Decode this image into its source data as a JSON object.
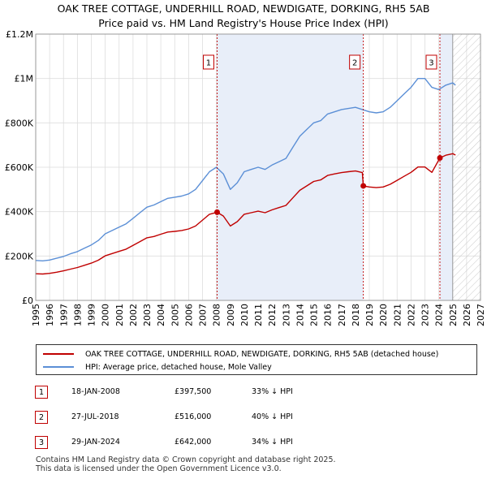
{
  "header": {
    "title_line1": "OAK TREE COTTAGE, UNDERHILL ROAD, NEWDIGATE, DORKING, RH5 5AB",
    "title_line2": "Price paid vs. HM Land Registry's House Price Index (HPI)"
  },
  "legend": {
    "property_label": "OAK TREE COTTAGE, UNDERHILL ROAD, NEWDIGATE, DORKING, RH5 5AB (detached house)",
    "hpi_label": "HPI: Average price, detached house, Mole Valley"
  },
  "transactions": [
    {
      "num": "1",
      "date": "18-JAN-2008",
      "price": "£397,500",
      "hpi": "33% ↓ HPI"
    },
    {
      "num": "2",
      "date": "27-JUL-2018",
      "price": "£516,000",
      "hpi": "40% ↓ HPI"
    },
    {
      "num": "3",
      "date": "29-JAN-2024",
      "price": "£642,000",
      "hpi": "34% ↓ HPI"
    }
  ],
  "footer": {
    "line1": "Contains HM Land Registry data © Crown copyright and database right 2025.",
    "line2": "This data is licensed under the Open Government Licence v3.0."
  },
  "colors": {
    "property": "#c00000",
    "hpi": "#5b8fd6",
    "shade": "#e8eef9",
    "grid": "#dddddd"
  },
  "chart_data": {
    "type": "line",
    "title": "OAK TREE COTTAGE, UNDERHILL ROAD, NEWDIGATE, DORKING, RH5 5AB",
    "subtitle": "Price paid vs. HM Land Registry's House Price Index (HPI)",
    "xlim": [
      1995,
      2027
    ],
    "ylim": [
      0,
      1200000
    ],
    "x_ticks": [
      "1995",
      "1996",
      "1997",
      "1998",
      "1999",
      "2000",
      "2001",
      "2002",
      "2003",
      "2004",
      "2005",
      "2006",
      "2007",
      "2008",
      "2009",
      "2010",
      "2011",
      "2012",
      "2013",
      "2014",
      "2015",
      "2016",
      "2017",
      "2018",
      "2019",
      "2020",
      "2021",
      "2022",
      "2023",
      "2024",
      "2025",
      "2026",
      "2027"
    ],
    "y_ticks": [
      {
        "value": 0,
        "label": "£0"
      },
      {
        "value": 200000,
        "label": "£200K"
      },
      {
        "value": 400000,
        "label": "£400K"
      },
      {
        "value": 600000,
        "label": "£600K"
      },
      {
        "value": 800000,
        "label": "£800K"
      },
      {
        "value": 1000000,
        "label": "£1M"
      },
      {
        "value": 1200000,
        "label": "£1.2M"
      }
    ],
    "shaded_ranges": [
      [
        2008.05,
        2018.57
      ],
      [
        2024.08,
        2025.0
      ]
    ],
    "forecast_from": 2025.0,
    "series": [
      {
        "name": "HPI: Average price, detached house, Mole Valley",
        "x": [
          1995,
          1995.5,
          1996,
          1996.5,
          1997,
          1997.5,
          1998,
          1998.5,
          1999,
          1999.5,
          2000,
          2000.5,
          2001,
          2001.5,
          2002,
          2002.5,
          2003,
          2003.5,
          2004,
          2004.5,
          2005,
          2005.5,
          2006,
          2006.5,
          2007,
          2007.5,
          2008,
          2008.5,
          2009,
          2009.5,
          2010,
          2010.5,
          2011,
          2011.5,
          2012,
          2012.5,
          2013,
          2013.5,
          2014,
          2014.5,
          2015,
          2015.5,
          2016,
          2016.5,
          2017,
          2017.5,
          2018,
          2018.5,
          2019,
          2019.5,
          2020,
          2020.5,
          2021,
          2021.5,
          2022,
          2022.5,
          2023,
          2023.5,
          2024,
          2024.5,
          2025,
          2025.2
        ],
        "values": [
          180000,
          178000,
          182000,
          190000,
          198000,
          210000,
          220000,
          235000,
          250000,
          270000,
          300000,
          315000,
          330000,
          345000,
          370000,
          395000,
          420000,
          430000,
          445000,
          460000,
          465000,
          470000,
          480000,
          500000,
          540000,
          580000,
          600000,
          570000,
          500000,
          530000,
          580000,
          590000,
          600000,
          590000,
          610000,
          625000,
          640000,
          690000,
          740000,
          770000,
          800000,
          810000,
          840000,
          850000,
          860000,
          865000,
          870000,
          860000,
          850000,
          845000,
          850000,
          870000,
          900000,
          930000,
          960000,
          1000000,
          1000000,
          960000,
          950000,
          970000,
          980000,
          970000
        ]
      },
      {
        "name": "OAK TREE COTTAGE, UNDERHILL ROAD, NEWDIGATE, DORKING, RH5 5AB (detached house)",
        "x": [
          1995,
          1995.5,
          1996,
          1996.5,
          1997,
          1997.5,
          1998,
          1998.5,
          1999,
          1999.5,
          2000,
          2000.5,
          2001,
          2001.5,
          2002,
          2002.5,
          2003,
          2003.5,
          2004,
          2004.5,
          2005,
          2005.5,
          2006,
          2006.5,
          2007,
          2007.5,
          2008.05,
          2008.5,
          2009,
          2009.5,
          2010,
          2010.5,
          2011,
          2011.5,
          2012,
          2012.5,
          2013,
          2013.5,
          2014,
          2014.5,
          2015,
          2015.5,
          2016,
          2016.5,
          2017,
          2017.5,
          2018,
          2018.5,
          2018.57,
          2019,
          2019.5,
          2020,
          2020.5,
          2021,
          2021.5,
          2022,
          2022.5,
          2023,
          2023.5,
          2024.08,
          2024.5,
          2025,
          2025.2
        ],
        "values": [
          120000,
          119000,
          122000,
          127000,
          133000,
          141000,
          148000,
          158000,
          168000,
          181000,
          201000,
          211000,
          221000,
          231000,
          248000,
          265000,
          282000,
          288000,
          298000,
          308000,
          311000,
          315000,
          322000,
          335000,
          362000,
          388000,
          397500,
          380000,
          335000,
          355000,
          388000,
          395000,
          402000,
          395000,
          408000,
          418000,
          428000,
          462000,
          496000,
          516000,
          536000,
          543000,
          563000,
          570000,
          576000,
          580000,
          583000,
          576000,
          516000,
          511000,
          508000,
          511000,
          523000,
          541000,
          559000,
          577000,
          601000,
          601000,
          577000,
          642000,
          654000,
          661000,
          655000
        ]
      }
    ],
    "sales": [
      {
        "num": "1",
        "x": 2008.05,
        "value": 397500
      },
      {
        "num": "2",
        "x": 2018.57,
        "value": 516000
      },
      {
        "num": "3",
        "x": 2024.08,
        "value": 642000
      }
    ]
  }
}
